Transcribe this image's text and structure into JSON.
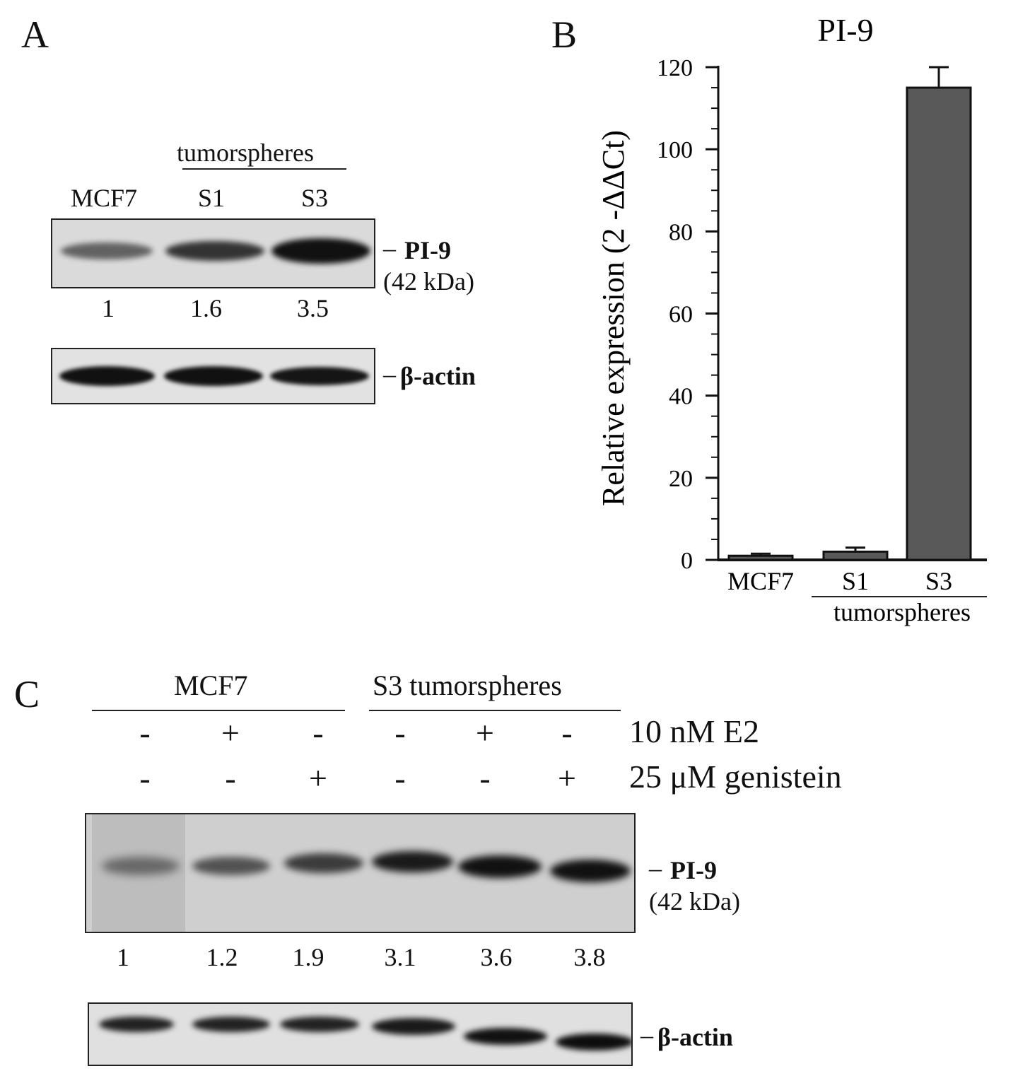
{
  "panel_a": {
    "letter": "A",
    "group_label": "tumorspheres",
    "lanes": [
      "MCF7",
      "S1",
      "S3"
    ],
    "pi9_label": "PI-9",
    "pi9_kda": "(42 kDa)",
    "quantification": [
      "1",
      "1.6",
      "3.5"
    ],
    "actin_label": "β-actin"
  },
  "panel_b": {
    "letter": "B",
    "group_label": "tumorspheres"
  },
  "panel_c": {
    "letter": "C",
    "group_mcf7": "MCF7",
    "group_s3": "S3 tumorspheres",
    "treatment_e2": "10 nM E2",
    "treatment_genistein": "25 μM genistein",
    "e2_signs": [
      "-",
      "+",
      "-",
      "-",
      "+",
      "-"
    ],
    "genistein_signs": [
      "-",
      "-",
      "+",
      "-",
      "-",
      "+"
    ],
    "pi9_label": "PI-9",
    "pi9_kda": "(42 kDa)",
    "quantification": [
      "1",
      "1.2",
      "1.9",
      "3.1",
      "3.6",
      "3.8"
    ],
    "actin_label": "β-actin"
  },
  "chart_data": {
    "type": "bar",
    "title": "PI-9",
    "ylabel": "Relative expression (2 -ΔΔCt)",
    "xlabel": "",
    "categories": [
      "MCF7",
      "S1",
      "S3"
    ],
    "values": [
      1,
      2,
      115
    ],
    "errors": [
      0.5,
      1,
      5
    ],
    "ylim": [
      0,
      120
    ],
    "yticks": [
      0,
      20,
      40,
      60,
      80,
      100,
      120
    ],
    "bar_color": "#595959",
    "grid": false,
    "legend": "none"
  }
}
